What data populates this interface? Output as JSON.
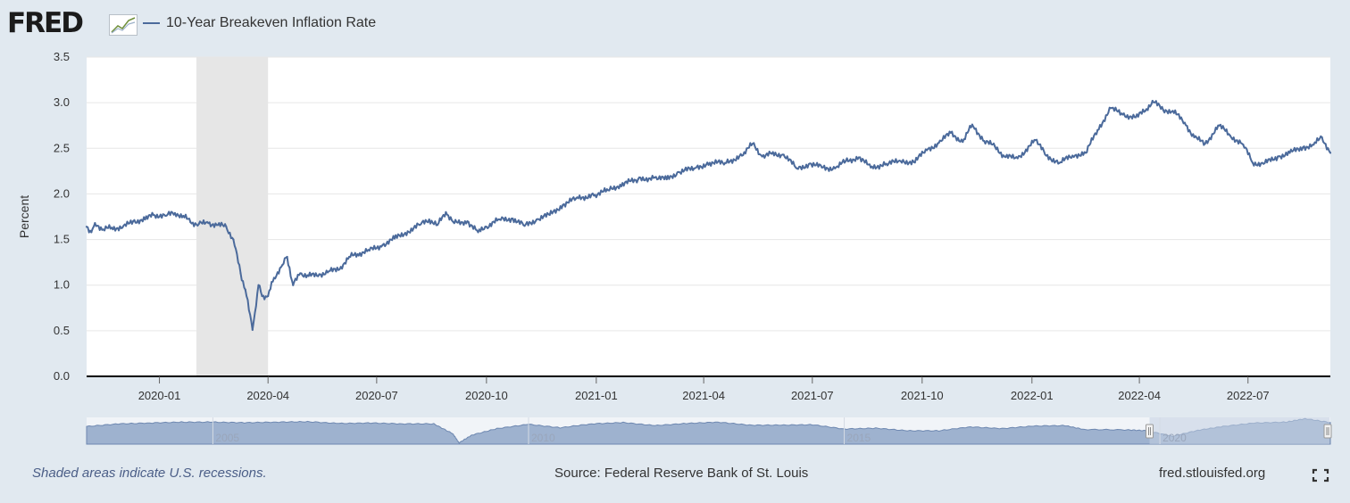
{
  "header": {
    "logo_text": "FRED",
    "logo_icon": "chart-trend-icon",
    "series_label": "10-Year Breakeven Inflation Rate"
  },
  "footer": {
    "recession_note": "Shaded areas indicate U.S. recessions.",
    "source": "Source: Federal Reserve Bank of St. Louis",
    "site": "fred.stlouisfed.org",
    "fullscreen_icon": "fullscreen-icon"
  },
  "colors": {
    "series": "#4b6a9b",
    "page_background": "#e1e9f0",
    "plot_background": "#ffffff",
    "recession_shade": "#e6e6e6",
    "navigator_fill": "#9eb2cf",
    "navigator_selected": "#c3cfe1"
  },
  "chart_data": {
    "type": "line",
    "title": "",
    "xlabel": "",
    "ylabel": "Percent",
    "ylim": [
      0,
      3.5
    ],
    "y_ticks": [
      "0.0",
      "0.5",
      "1.0",
      "1.5",
      "2.0",
      "2.5",
      "3.0",
      "3.5"
    ],
    "x_range": [
      "2019-11-01",
      "2022-09-08"
    ],
    "x_ticks": [
      {
        "date": "2020-01-01",
        "label": "2020-01"
      },
      {
        "date": "2020-04-01",
        "label": "2020-04"
      },
      {
        "date": "2020-07-01",
        "label": "2020-07"
      },
      {
        "date": "2020-10-01",
        "label": "2020-10"
      },
      {
        "date": "2021-01-01",
        "label": "2021-01"
      },
      {
        "date": "2021-04-01",
        "label": "2021-04"
      },
      {
        "date": "2021-07-01",
        "label": "2021-07"
      },
      {
        "date": "2021-10-01",
        "label": "2021-10"
      },
      {
        "date": "2022-01-01",
        "label": "2022-01"
      },
      {
        "date": "2022-04-01",
        "label": "2022-04"
      },
      {
        "date": "2022-07-01",
        "label": "2022-07"
      }
    ],
    "grid": true,
    "legend": "top-left",
    "recessions": [
      {
        "start": "2020-02-01",
        "end": "2020-04-01"
      }
    ],
    "series": [
      {
        "name": "10-Year Breakeven Inflation Rate",
        "points": [
          [
            "2019-11-01",
            1.64
          ],
          [
            "2019-11-05",
            1.58
          ],
          [
            "2019-11-08",
            1.68
          ],
          [
            "2019-11-15",
            1.61
          ],
          [
            "2019-11-22",
            1.63
          ],
          [
            "2019-12-01",
            1.63
          ],
          [
            "2019-12-10",
            1.7
          ],
          [
            "2019-12-20",
            1.72
          ],
          [
            "2019-12-27",
            1.77
          ],
          [
            "2020-01-06",
            1.76
          ],
          [
            "2020-01-14",
            1.79
          ],
          [
            "2020-01-21",
            1.76
          ],
          [
            "2020-01-27",
            1.69
          ],
          [
            "2020-02-03",
            1.67
          ],
          [
            "2020-02-11",
            1.68
          ],
          [
            "2020-02-19",
            1.66
          ],
          [
            "2020-02-26",
            1.64
          ],
          [
            "2020-03-03",
            1.5
          ],
          [
            "2020-03-09",
            1.13
          ],
          [
            "2020-03-13",
            0.95
          ],
          [
            "2020-03-19",
            0.51
          ],
          [
            "2020-03-24",
            1.0
          ],
          [
            "2020-03-27",
            0.88
          ],
          [
            "2020-04-01",
            0.88
          ],
          [
            "2020-04-06",
            1.08
          ],
          [
            "2020-04-13",
            1.22
          ],
          [
            "2020-04-17",
            1.31
          ],
          [
            "2020-04-22",
            1.0
          ],
          [
            "2020-04-28",
            1.13
          ],
          [
            "2020-05-05",
            1.1
          ],
          [
            "2020-05-14",
            1.12
          ],
          [
            "2020-05-21",
            1.14
          ],
          [
            "2020-06-01",
            1.2
          ],
          [
            "2020-06-08",
            1.31
          ],
          [
            "2020-06-15",
            1.34
          ],
          [
            "2020-06-25",
            1.38
          ],
          [
            "2020-07-06",
            1.44
          ],
          [
            "2020-07-16",
            1.51
          ],
          [
            "2020-07-27",
            1.59
          ],
          [
            "2020-08-06",
            1.66
          ],
          [
            "2020-08-14",
            1.72
          ],
          [
            "2020-08-21",
            1.66
          ],
          [
            "2020-08-28",
            1.8
          ],
          [
            "2020-09-04",
            1.68
          ],
          [
            "2020-09-15",
            1.7
          ],
          [
            "2020-09-24",
            1.58
          ],
          [
            "2020-10-01",
            1.64
          ],
          [
            "2020-10-12",
            1.72
          ],
          [
            "2020-10-23",
            1.73
          ],
          [
            "2020-11-02",
            1.65
          ],
          [
            "2020-11-12",
            1.72
          ],
          [
            "2020-11-23",
            1.77
          ],
          [
            "2020-12-04",
            1.88
          ],
          [
            "2020-12-15",
            1.95
          ],
          [
            "2020-12-31",
            1.99
          ],
          [
            "2021-01-11",
            2.04
          ],
          [
            "2021-01-21",
            2.1
          ],
          [
            "2021-02-05",
            2.16
          ],
          [
            "2021-02-19",
            2.18
          ],
          [
            "2021-03-01",
            2.16
          ],
          [
            "2021-03-11",
            2.24
          ],
          [
            "2021-03-24",
            2.28
          ],
          [
            "2021-04-06",
            2.34
          ],
          [
            "2021-04-19",
            2.34
          ],
          [
            "2021-05-03",
            2.42
          ],
          [
            "2021-05-12",
            2.55
          ],
          [
            "2021-05-20",
            2.41
          ],
          [
            "2021-05-28",
            2.44
          ],
          [
            "2021-06-07",
            2.43
          ],
          [
            "2021-06-18",
            2.28
          ],
          [
            "2021-06-30",
            2.33
          ],
          [
            "2021-07-09",
            2.29
          ],
          [
            "2021-07-20",
            2.28
          ],
          [
            "2021-07-29",
            2.36
          ],
          [
            "2021-08-09",
            2.4
          ],
          [
            "2021-08-19",
            2.29
          ],
          [
            "2021-09-01",
            2.33
          ],
          [
            "2021-09-13",
            2.36
          ],
          [
            "2021-09-24",
            2.35
          ],
          [
            "2021-10-05",
            2.48
          ],
          [
            "2021-10-15",
            2.56
          ],
          [
            "2021-10-25",
            2.67
          ],
          [
            "2021-11-04",
            2.57
          ],
          [
            "2021-11-12",
            2.76
          ],
          [
            "2021-11-22",
            2.58
          ],
          [
            "2021-12-01",
            2.52
          ],
          [
            "2021-12-09",
            2.41
          ],
          [
            "2021-12-20",
            2.39
          ],
          [
            "2022-01-04",
            2.59
          ],
          [
            "2022-01-13",
            2.42
          ],
          [
            "2022-01-24",
            2.34
          ],
          [
            "2022-02-04",
            2.42
          ],
          [
            "2022-02-15",
            2.45
          ],
          [
            "2022-02-25",
            2.7
          ],
          [
            "2022-03-08",
            2.94
          ],
          [
            "2022-03-18",
            2.87
          ],
          [
            "2022-03-29",
            2.84
          ],
          [
            "2022-04-06",
            2.91
          ],
          [
            "2022-04-12",
            3.02
          ],
          [
            "2022-04-21",
            2.92
          ],
          [
            "2022-04-29",
            2.91
          ],
          [
            "2022-05-09",
            2.78
          ],
          [
            "2022-05-17",
            2.62
          ],
          [
            "2022-05-26",
            2.55
          ],
          [
            "2022-06-07",
            2.75
          ],
          [
            "2022-06-16",
            2.64
          ],
          [
            "2022-06-27",
            2.54
          ],
          [
            "2022-07-05",
            2.34
          ],
          [
            "2022-07-14",
            2.33
          ],
          [
            "2022-07-26",
            2.41
          ],
          [
            "2022-08-05",
            2.45
          ],
          [
            "2022-08-16",
            2.51
          ],
          [
            "2022-08-25",
            2.54
          ],
          [
            "2022-09-01",
            2.62
          ],
          [
            "2022-09-08",
            2.45
          ]
        ]
      }
    ]
  },
  "navigator": {
    "tick_labels": [
      "2005",
      "2010",
      "2015",
      "2020"
    ],
    "profile": [
      [
        2003.0,
        2.05
      ],
      [
        2003.5,
        2.35
      ],
      [
        2004.0,
        2.45
      ],
      [
        2004.5,
        2.55
      ],
      [
        2005.0,
        2.55
      ],
      [
        2005.5,
        2.48
      ],
      [
        2006.0,
        2.55
      ],
      [
        2006.5,
        2.6
      ],
      [
        2007.0,
        2.4
      ],
      [
        2007.5,
        2.45
      ],
      [
        2008.0,
        2.35
      ],
      [
        2008.5,
        2.35
      ],
      [
        2008.8,
        1.2
      ],
      [
        2008.9,
        0.15
      ],
      [
        2009.1,
        1.05
      ],
      [
        2009.5,
        1.8
      ],
      [
        2010.0,
        2.3
      ],
      [
        2010.5,
        1.9
      ],
      [
        2011.0,
        2.35
      ],
      [
        2011.5,
        2.5
      ],
      [
        2012.0,
        2.15
      ],
      [
        2012.5,
        2.4
      ],
      [
        2013.0,
        2.55
      ],
      [
        2013.5,
        2.2
      ],
      [
        2014.0,
        2.2
      ],
      [
        2014.5,
        2.25
      ],
      [
        2015.0,
        1.75
      ],
      [
        2015.5,
        1.85
      ],
      [
        2016.0,
        1.55
      ],
      [
        2016.5,
        1.55
      ],
      [
        2017.0,
        2.0
      ],
      [
        2017.5,
        1.8
      ],
      [
        2018.0,
        2.1
      ],
      [
        2018.5,
        2.15
      ],
      [
        2018.8,
        1.7
      ],
      [
        2019.5,
        1.65
      ],
      [
        2019.8,
        1.55
      ],
      [
        2020.2,
        0.9
      ],
      [
        2020.6,
        1.6
      ],
      [
        2021.0,
        2.05
      ],
      [
        2021.5,
        2.45
      ],
      [
        2022.0,
        2.55
      ],
      [
        2022.3,
        2.95
      ],
      [
        2022.7,
        2.5
      ]
    ],
    "selected_range": [
      "2019-11-01",
      "2022-09-08"
    ]
  }
}
